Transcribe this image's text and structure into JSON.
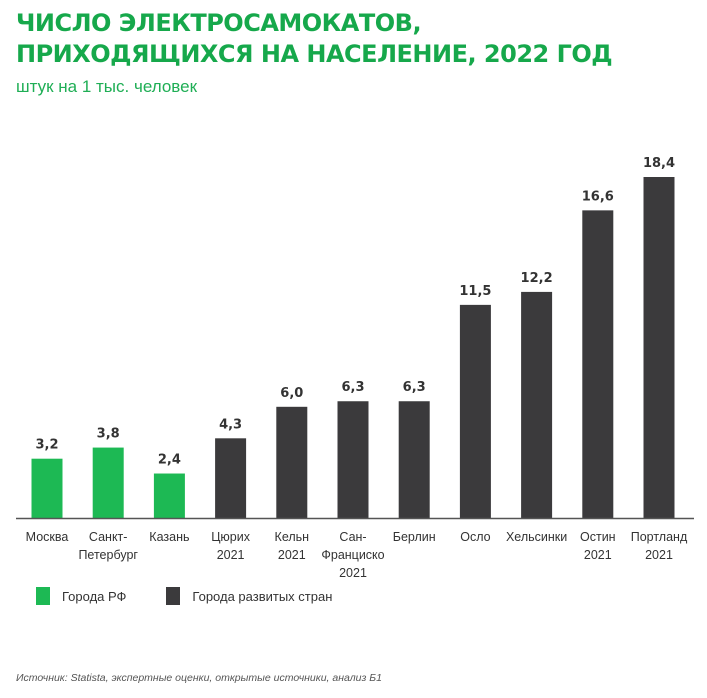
{
  "chart_data": {
    "type": "bar",
    "title": "ЧИСЛО ЭЛЕКТРОСАМОКАТОВ, ПРИХОДЯЩИХСЯ НА НАСЕЛЕНИЕ, 2022 ГОД",
    "title_lines": [
      "ЧИСЛО ЭЛЕКТРОСАМОКАТОВ,",
      "ПРИХОДЯЩИХСЯ НА НАСЕЛЕНИЕ, 2022 ГОД"
    ],
    "subtitle": "штук на 1 тыс. человек",
    "categories": [
      [
        "Москва"
      ],
      [
        "Санкт-",
        "Петербург"
      ],
      [
        "Казань"
      ],
      [
        "Цюрих",
        "2021"
      ],
      [
        "Кельн",
        "2021"
      ],
      [
        "Сан-",
        "Франциско",
        "2021"
      ],
      [
        "Берлин"
      ],
      [
        "Осло"
      ],
      [
        "Хельсинки"
      ],
      [
        "Остин",
        "2021"
      ],
      [
        "Портланд",
        "2021"
      ]
    ],
    "values": [
      3.2,
      3.8,
      2.4,
      4.3,
      6.0,
      6.3,
      6.3,
      11.5,
      12.2,
      16.6,
      18.4
    ],
    "value_labels": [
      "3,2",
      "3,8",
      "2,4",
      "4,3",
      "6,0",
      "6,3",
      "6,3",
      "11,5",
      "12,2",
      "16,6",
      "18,4"
    ],
    "groups": [
      0,
      0,
      0,
      1,
      1,
      1,
      1,
      1,
      1,
      1,
      1
    ],
    "legend": [
      {
        "name": "Города РФ",
        "color": "#1db954"
      },
      {
        "name": "Города развитых стран",
        "color": "#3b3a3c"
      }
    ],
    "legend_position": "bottom-left",
    "ylim": [
      0,
      18.4
    ],
    "grid": false,
    "source": "Источник: Statista, экспертные оценки, открытые источники, анализ Б1"
  }
}
